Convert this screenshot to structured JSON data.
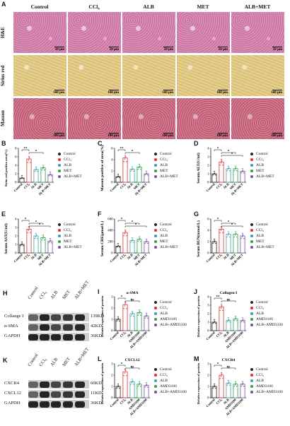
{
  "panel_letters": {
    "A": "A",
    "B": "B",
    "C": "C",
    "D": "D",
    "E": "E",
    "F": "F",
    "G": "G",
    "H": "H",
    "I": "I",
    "J": "J",
    "K": "K",
    "L": "L",
    "M": "M"
  },
  "groups": [
    "Control",
    "CCl₄",
    "ALB",
    "MET",
    "ALB+MET"
  ],
  "stains": [
    "H&E",
    "Sirius red",
    "Masson"
  ],
  "scale_labels": {
    "he": "50 μm",
    "other": "100 μm"
  },
  "colors": {
    "Control": "#222222",
    "CCl4": "#e0302e",
    "ALB": "#3aa0a0",
    "MET": "#2aa24a",
    "ALB+MET": "#7a4fa0"
  },
  "legend_5": [
    "Control",
    "CCl₄",
    "ALB",
    "MET",
    "ALB+MET"
  ],
  "legend_amd": [
    "Control",
    "CCl₄",
    "ALB",
    "AMD3100",
    "ALB+AMD3100"
  ],
  "western_H": {
    "lanes": [
      "Control",
      "CCl₄",
      "ALB",
      "MET",
      "ALB+MET"
    ],
    "rows": [
      {
        "name": "Collange I",
        "kda": "139KD"
      },
      {
        "name": "α-SMA",
        "kda": "42KD"
      },
      {
        "name": "GAPDH",
        "kda": "36KD"
      }
    ]
  },
  "western_K": {
    "lanes": [
      "Control",
      "CCl₄",
      "ALB",
      "MET",
      "ALB+MET"
    ],
    "rows": [
      {
        "name": "CXCR4",
        "kda": "60KD"
      },
      {
        "name": "CXCL12",
        "kda": "11KD"
      },
      {
        "name": "GAPDH",
        "kda": "36KD"
      }
    ]
  },
  "chart_data": [
    {
      "panel": "B",
      "type": "bar",
      "ylabel": "Sirius red positive area(%)",
      "categories": [
        "Control",
        "CCl₄",
        "ALB",
        "MET",
        "ALB+MET"
      ],
      "values": [
        1.0,
        5.5,
        3.0,
        3.4,
        1.8
      ],
      "ylim": [
        0,
        8
      ],
      "yticks": [
        0,
        2,
        4,
        6,
        8
      ],
      "sig": [
        "**",
        "*"
      ]
    },
    {
      "panel": "C",
      "type": "bar",
      "ylabel": "Masson positive of area(%)",
      "categories": [
        "Control",
        "CCl₄",
        "ALB",
        "MET",
        "ALB+MET"
      ],
      "values": [
        1.0,
        4.3,
        2.3,
        2.7,
        1.5
      ],
      "ylim": [
        0,
        6
      ],
      "yticks": [
        0,
        2,
        4,
        6
      ],
      "sig": [
        "**",
        "*"
      ]
    },
    {
      "panel": "D",
      "type": "bar",
      "ylabel": "Serum ALT(U/ml)",
      "categories": [
        "Control",
        "CCl₄",
        "ALB",
        "MET",
        "ALB+MET"
      ],
      "values": [
        1.0,
        2.4,
        1.6,
        1.6,
        1.3
      ],
      "ylim": [
        0,
        4
      ],
      "yticks": [
        0,
        1,
        2,
        3,
        4
      ],
      "sig": [
        "*",
        "*",
        "*"
      ]
    },
    {
      "panel": "E",
      "type": "bar",
      "ylabel": "Serum AST(U/ml)",
      "categories": [
        "Control",
        "CCl₄",
        "ALB",
        "MET",
        "ALB+MET"
      ],
      "values": [
        1.0,
        2.8,
        2.0,
        1.8,
        1.4
      ],
      "ylim": [
        0,
        4
      ],
      "yticks": [
        0,
        1,
        2,
        3,
        4
      ],
      "sig": [
        "*",
        "*",
        "*"
      ]
    },
    {
      "panel": "F",
      "type": "bar",
      "ylabel": "Serum CRE(μmol/L)",
      "categories": [
        "Control",
        "CCl₄",
        "ALB",
        "MET",
        "ALB+MET"
      ],
      "values": [
        120,
        360,
        220,
        240,
        200
      ],
      "ylim": [
        0,
        600
      ],
      "yticks": [
        0,
        200,
        400,
        600
      ],
      "sig": [
        "*",
        "*",
        "*"
      ]
    },
    {
      "panel": "G",
      "type": "bar",
      "ylabel": "Serum BUN(mmol/L)",
      "categories": [
        "Control",
        "CCl₄",
        "ALB",
        "MET",
        "ALB+MET"
      ],
      "values": [
        2.0,
        4.2,
        3.3,
        3.3,
        3.0
      ],
      "ylim": [
        0,
        6
      ],
      "yticks": [
        0,
        2,
        4,
        6
      ],
      "sig": [
        "*",
        "*",
        "*"
      ]
    },
    {
      "panel": "I",
      "type": "bar",
      "title": "α-SMA",
      "ylabel": "Relative expression of protein",
      "categories": [
        "Control",
        "CCl₄",
        "ALB",
        "AMD3100",
        "ALB+AMD3100"
      ],
      "values": [
        1.0,
        2.3,
        1.5,
        1.6,
        1.3
      ],
      "ylim": [
        0,
        3
      ],
      "yticks": [
        0,
        1,
        2,
        3
      ],
      "sig": [
        "*",
        "ns"
      ]
    },
    {
      "panel": "J",
      "type": "bar",
      "title": "Collagen I",
      "ylabel": "Relative expression of protein",
      "categories": [
        "Control",
        "CCl₄",
        "ALB",
        "AMD3100",
        "ALB+AMD3100"
      ],
      "values": [
        1.0,
        2.8,
        1.2,
        1.4,
        1.2
      ],
      "ylim": [
        0,
        4
      ],
      "yticks": [
        0,
        1,
        2,
        3,
        4
      ],
      "sig": [
        "**",
        "ns"
      ]
    },
    {
      "panel": "L",
      "type": "bar",
      "title": "CXCL12",
      "ylabel": "Relative expression of protein",
      "categories": [
        "Control",
        "CCl₄",
        "ALB",
        "AMD3100",
        "ALB+AMD3100"
      ],
      "values": [
        1.0,
        2.3,
        1.4,
        1.2,
        1.1
      ],
      "ylim": [
        0,
        3
      ],
      "yticks": [
        0,
        1,
        2,
        3
      ],
      "sig": [
        "*",
        "ns"
      ]
    },
    {
      "panel": "M",
      "type": "bar",
      "title": "CXCR4",
      "ylabel": "Relative expression of protein",
      "categories": [
        "Control",
        "CCl₄",
        "ALB",
        "AMD3100",
        "ALB+AMD3100"
      ],
      "values": [
        1.0,
        2.0,
        1.3,
        1.2,
        1.2
      ],
      "ylim": [
        0,
        3
      ],
      "yticks": [
        0,
        1,
        2,
        3
      ],
      "sig": [
        "*",
        "ns"
      ]
    }
  ]
}
